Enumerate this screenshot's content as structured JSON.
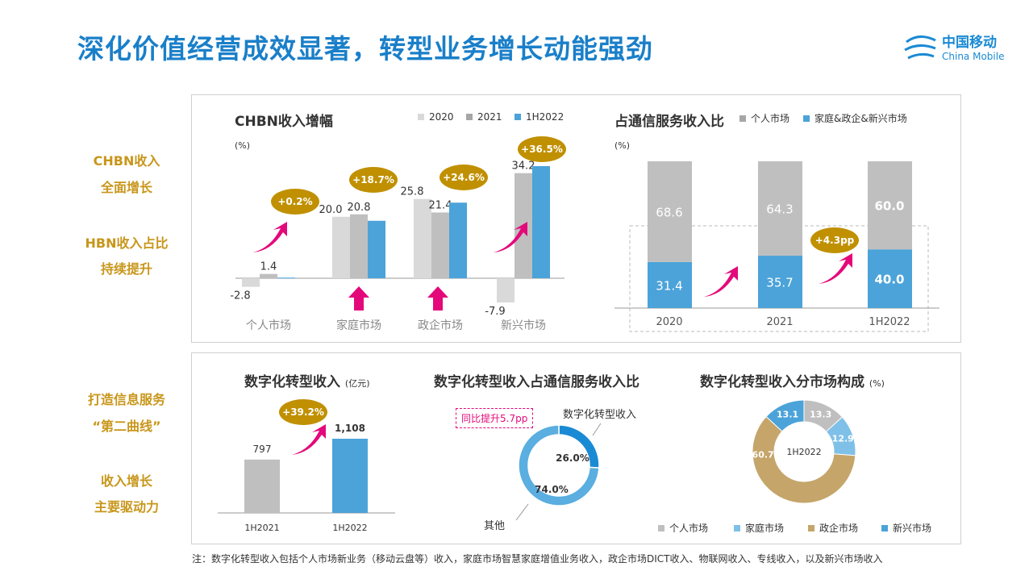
{
  "title": "深化价值经营成效显著，转型业务增长动能强劲",
  "logo": {
    "cn": "中国移动",
    "en": "China Mobile"
  },
  "side_labels": [
    "CHBN收入",
    "全面增长",
    "HBN收入占比",
    "持续提升",
    "打造信息服务",
    "“第二曲线”",
    "收入增长",
    "主要驱动力"
  ],
  "colors": {
    "accent": "#1a7fc9",
    "gold": "#c8961a",
    "bubble": "#c09000",
    "arrow": "#e4097a",
    "light_gray": "#d9d9d9",
    "gray": "#bfbfbf",
    "blue": "#4ba3d9",
    "light_blue": "#7fc0e8",
    "tan": "#c5a56a"
  },
  "chart_data": [
    {
      "type": "bar",
      "title": "CHBN收入增幅",
      "unit": "(%)",
      "categories": [
        "个人市场",
        "家庭市场",
        "政企市场",
        "新兴市场"
      ],
      "series": [
        {
          "name": "2020",
          "values": [
            -2.8,
            20.0,
            25.8,
            -7.9
          ]
        },
        {
          "name": "2021",
          "values": [
            1.4,
            20.8,
            21.4,
            34.2
          ]
        },
        {
          "name": "1H2022",
          "values": [
            0.2,
            18.7,
            24.6,
            36.5
          ]
        }
      ],
      "callouts": [
        "+0.2%",
        "+18.7%",
        "+24.6%",
        "+36.5%"
      ]
    },
    {
      "type": "bar",
      "title": "占通信服务收入比",
      "unit": "(%)",
      "stacked": true,
      "categories": [
        "2020",
        "2021",
        "1H2022"
      ],
      "series": [
        {
          "name": "个人市场",
          "values": [
            68.6,
            64.3,
            60.0
          ]
        },
        {
          "name": "家庭&政企&新兴市场",
          "values": [
            31.4,
            35.7,
            40.0
          ]
        }
      ],
      "callouts": [
        "+4.3pp"
      ]
    },
    {
      "type": "bar",
      "title": "数字化转型收入",
      "unit": "(亿元)",
      "categories": [
        "1H2021",
        "1H2022"
      ],
      "values": [
        797,
        1108
      ],
      "value_labels": [
        "797",
        "1,108"
      ],
      "callouts": [
        "+39.2%"
      ]
    },
    {
      "type": "pie",
      "title": "数字化转型收入占通信服务收入比",
      "labels": [
        "数字化转型收入",
        "其他"
      ],
      "values": [
        26.0,
        74.0
      ],
      "value_labels": [
        "26.0%",
        "74.0%"
      ],
      "callouts": [
        "同比提升5.7pp"
      ]
    },
    {
      "type": "pie",
      "title": "数字化转型收入分市场构成",
      "unit": "(%)",
      "center_label": "1H2022",
      "labels": [
        "个人市场",
        "家庭市场",
        "政企市场",
        "新兴市场"
      ],
      "values": [
        13.3,
        12.9,
        60.7,
        13.1
      ]
    }
  ],
  "note": "注：数字化转型收入包括个人市场新业务（移动云盘等）收入，家庭市场智慧家庭增值业务收入，政企市场DICT收入、物联网收入、专线收入，以及新兴市场收入"
}
